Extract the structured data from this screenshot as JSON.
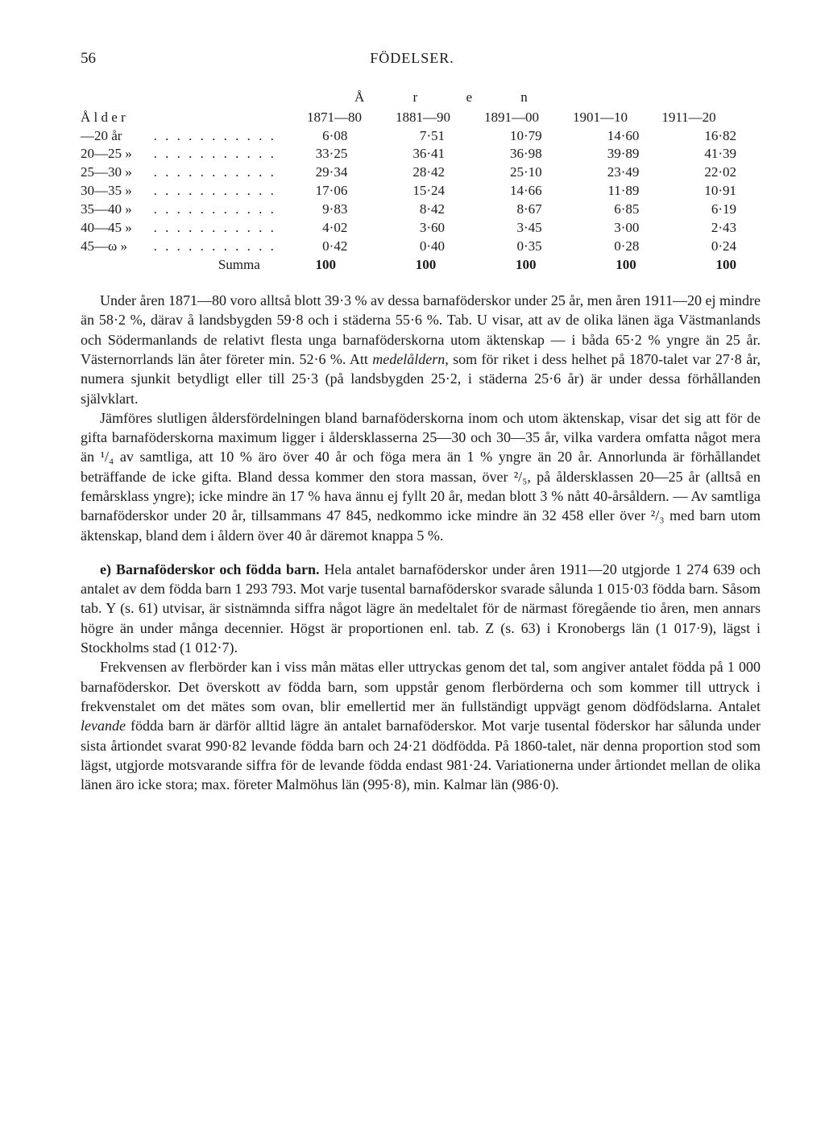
{
  "page_number": "56",
  "page_title": "FÖDELSER.",
  "table": {
    "spanning_header": "Å r e n",
    "row_label_header": "Å l d e r",
    "columns": [
      "1871—80",
      "1881—90",
      "1891—00",
      "1901—10",
      "1911—20"
    ],
    "rows": [
      {
        "label": "—20 år",
        "dots": ". . . . . . . . . . .",
        "v": [
          "6·08",
          "7·51",
          "10·79",
          "14·60",
          "16·82"
        ]
      },
      {
        "label": "20—25  »",
        "dots": ". . . . . . . . . . .",
        "v": [
          "33·25",
          "36·41",
          "36·98",
          "39·89",
          "41·39"
        ]
      },
      {
        "label": "25—30  »",
        "dots": ". . . . . . . . . . .",
        "v": [
          "29·34",
          "28·42",
          "25·10",
          "23·49",
          "22·02"
        ]
      },
      {
        "label": "30—35  »",
        "dots": ". . . . . . . . . . .",
        "v": [
          "17·06",
          "15·24",
          "14·66",
          "11·89",
          "10·91"
        ]
      },
      {
        "label": "35—40  »",
        "dots": ". . . . . . . . . . .",
        "v": [
          "9·83",
          "8·42",
          "8·67",
          "6·85",
          "6·19"
        ]
      },
      {
        "label": "40—45  »",
        "dots": ". . . . . . . . . . .",
        "v": [
          "4·02",
          "3·60",
          "3·45",
          "3·00",
          "2·43"
        ]
      },
      {
        "label": "45—ω  »",
        "dots": ". . . . . . . . . . .",
        "v": [
          "0·42",
          "0·40",
          "0·35",
          "0·28",
          "0·24"
        ]
      }
    ],
    "summa_label": "Summa",
    "summa": [
      "100",
      "100",
      "100",
      "100",
      "100"
    ]
  },
  "p1": "Under åren 1871—80 voro alltså blott 39·3 % av dessa barnaföderskor under 25 år, men åren 1911—20 ej mindre än 58·2 %, därav å landsbygden 59·8 och i städerna 55·6 %. Tab. U visar, att av de olika länen äga Västmanlands och Södermanlands de relativt flesta unga barnaföderskorna utom äktenskap — i båda 65·2 % yngre än 25 år. Västernorrlands län åter företer min. 52·6 %. Att ",
  "p1_it": "medelåldern,",
  "p1b": " som för riket i dess helhet på 1870-talet var 27·8 år, numera sjunkit betydligt eller till 25·3 (på landsbygden 25·2, i städerna 25·6 år) är under dessa förhållanden självklart.",
  "p2": "Jämföres slutligen åldersfördelningen bland barnaföderskorna inom och utom äktenskap, visar det sig att för de gifta barnaföderskorna maximum ligger i åldersklasserna 25—30 och 30—35 år, vilka vardera omfatta något mera än ¹/₄ av samtliga, att 10 % äro över 40 år och föga mera än 1 % yngre än 20 år. Annorlunda är förhållandet beträffande de icke gifta. Bland dessa kommer den stora massan, över ²/₅, på åldersklassen 20—25 år (alltså en femårsklass yngre); icke mindre än 17 % hava ännu ej fyllt 20 år, medan blott 3 % nått 40-årsåldern. — Av samtliga barnaföderskor under 20 år, tillsammans 47 845, nedkommo icke mindre än 32 458 eller över ²/₃ med barn utom äktenskap, bland dem i åldern över 40 år däremot knappa 5 %.",
  "p3_lead": "e) Barnaföderskor och födda barn.",
  "p3": " Hela antalet barnaföderskor under åren 1911—20 utgjorde 1 274 639 och antalet av dem födda barn 1 293 793. Mot varje tusental barnaföderskor svarade sålunda 1 015·03 födda barn. Såsom tab. Y (s. 61) utvisar, är sistnämnda siffra något lägre än medeltalet för de närmast föregående tio åren, men annars högre än under många decennier. Högst är proportionen enl. tab. Z (s. 63) i Kronobergs län (1 017·9), lägst i Stockholms stad (1 012·7).",
  "p4a": "Frekvensen av flerbörder kan i viss mån mätas eller uttryckas genom det tal, som angiver antalet födda på 1 000 barnaföderskor. Det överskott av födda barn, som uppstår genom flerbörderna och som kommer till uttryck i frekvenstalet om det mätes som ovan, blir emellertid mer än fullständigt uppvägt genom dödfödslarna. Antalet ",
  "p4_it": "levande",
  "p4b": " födda barn är därför alltid lägre än antalet barnaföderskor. Mot varje tusental föderskor har sålunda under sista årtiondet svarat 990·82 levande födda barn och 24·21 dödfödda. På 1860-talet, när denna proportion stod som lägst, utgjorde motsvarande siffra för de levande födda endast 981·24. Variationerna under årtiondet mellan de olika länen äro icke stora; max. företer Malmöhus län (995·8), min. Kalmar län (986·0)."
}
